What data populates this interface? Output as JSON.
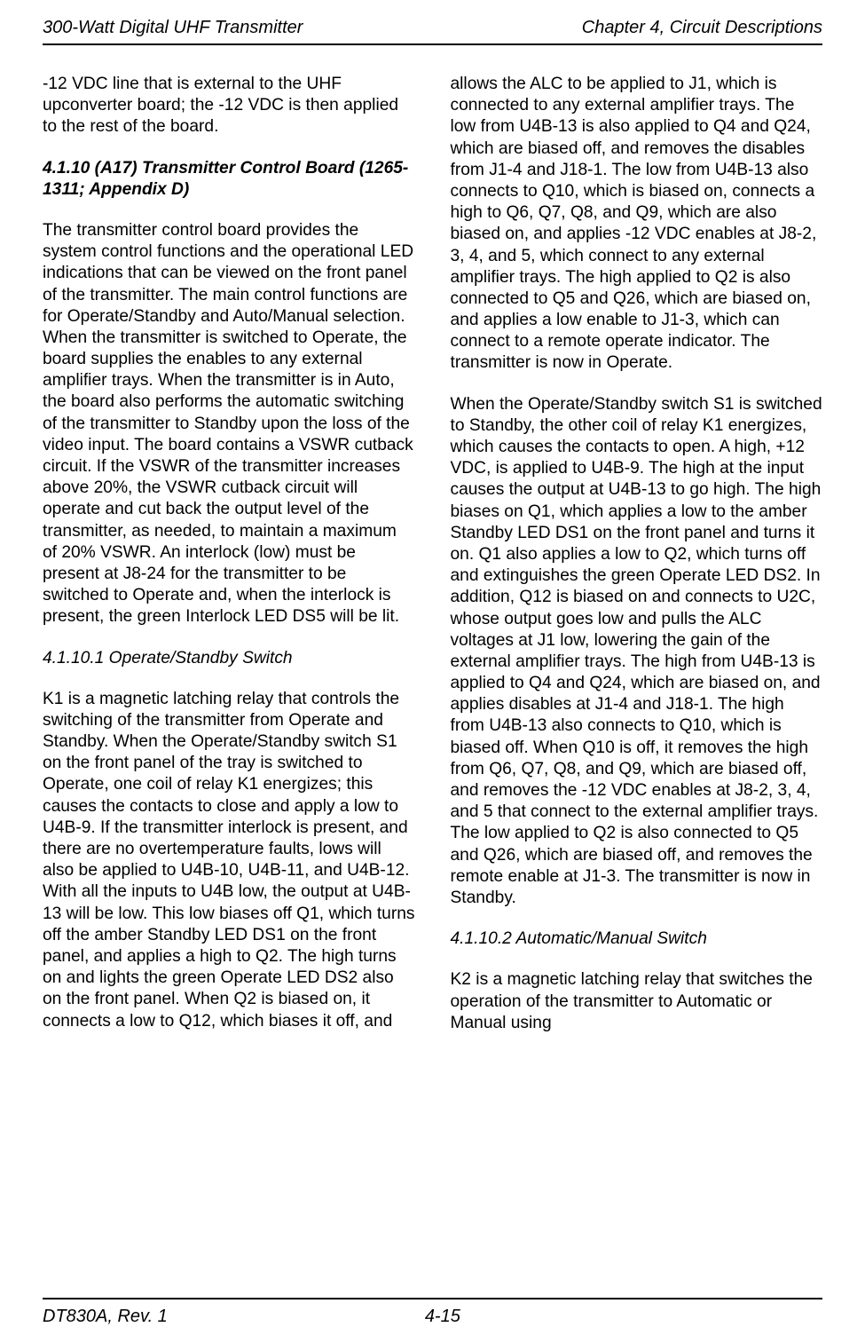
{
  "header": {
    "left": "300-Watt Digital UHF Transmitter",
    "right": "Chapter 4, Circuit Descriptions"
  },
  "footer": {
    "left": "DT830A, Rev. 1",
    "page": "4-15"
  },
  "content": {
    "carryover": "-12 VDC line that is external to the UHF upconverter board; the -12 VDC is then applied to the rest of the board.",
    "sec_4_1_10_head": "4.1.10 (A17) Transmitter Control Board (1265-1311; Appendix D)",
    "sec_4_1_10_p1": "The transmitter control board provides the system control functions and the operational LED indications that can be viewed on the front panel of the transmitter. The main control functions are for Operate/Standby and Auto/Manual selection. When the transmitter is switched to Operate, the board supplies the enables to any external amplifier trays. When the transmitter is in Auto, the board also performs the automatic switching of the transmitter to Standby upon the loss of the video input. The board contains a VSWR cutback circuit. If the VSWR of the transmitter increases above 20%, the VSWR cutback circuit will operate and cut back the output level of the transmitter, as needed, to maintain a maximum of 20% VSWR. An interlock (low) must be present at J8-24 for the transmitter to be switched to Operate and, when the interlock is present, the green Interlock LED DS5 will be lit.",
    "sec_4_1_10_1_head": "4.1.10.1 Operate/Standby Switch",
    "sec_4_1_10_1_p1": "K1 is a magnetic latching relay that controls the switching of the transmitter from Operate and Standby. When the Operate/Standby switch S1 on the front panel of the tray is switched to Operate, one coil of relay K1 energizes; this causes the contacts to close and apply a low to U4B-9. If the transmitter interlock is present, and there are no overtemperature faults, lows will also be applied to U4B-10, U4B-11, and U4B-12. With all the inputs to U4B low, the output at U4B-13 will be low. This low biases off Q1, which turns off the amber Standby LED DS1 on the front panel, and applies a high to Q2. The high turns on and lights the green Operate LED DS2 also on the front panel. When Q2 is biased on, it connects a low to Q12, which biases it off, and allows the ALC to be applied to J1, which is connected to any external amplifier trays. The low from U4B-13 is also applied to Q4 and Q24, which are biased off, and removes the disables from J1-4 and J18-1. The low from U4B-13 also connects to Q10, which is biased on, connects a high to Q6, Q7, Q8, and Q9, which are also biased on, and applies -12 VDC enables at J8-2, 3, 4, and 5, which connect to any external amplifier trays. The high applied to Q2 is also connected to Q5 and Q26, which are biased on, and applies a low enable to J1-3, which can connect to a remote operate indicator. The transmitter is now in Operate.",
    "sec_4_1_10_1_p2": "When the Operate/Standby switch S1 is switched to Standby, the other coil of relay K1 energizes, which causes the contacts to open. A high, +12 VDC, is applied to U4B-9. The high at the input causes the output at U4B-13 to go high. The high biases on Q1, which applies a low to the amber Standby LED DS1 on the front panel and turns it on. Q1 also applies a low to Q2, which turns off and extinguishes the green Operate LED DS2. In addition, Q12 is biased on and connects to U2C, whose output goes low and pulls the ALC voltages at J1 low, lowering the gain of the external amplifier trays. The high from U4B-13 is applied to Q4 and Q24, which are biased on, and applies disables at J1-4 and J18-1. The high from U4B-13 also connects to Q10, which is biased off. When Q10 is off, it removes the high from Q6, Q7, Q8, and Q9, which are biased off, and removes the -12 VDC enables at J8-2, 3, 4, and 5 that connect to the external amplifier trays. The low applied to Q2 is also connected to Q5 and Q26, which are biased off, and removes the remote enable at J1-3. The transmitter is now in Standby.",
    "sec_4_1_10_2_head": "4.1.10.2 Automatic/Manual Switch",
    "sec_4_1_10_2_p1": "K2 is a magnetic latching relay that switches the operation of the transmitter to Automatic or Manual using"
  }
}
